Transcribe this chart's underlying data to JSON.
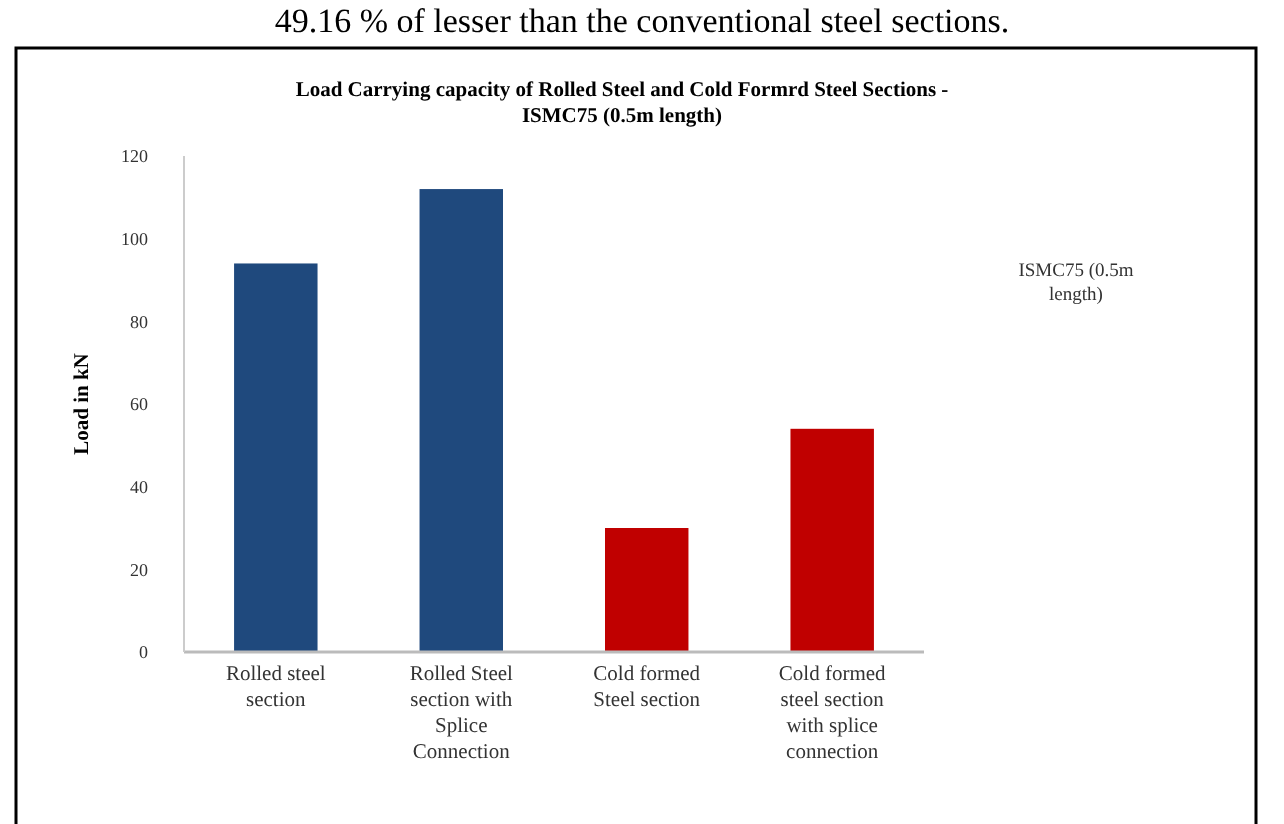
{
  "chart_data": {
    "type": "bar",
    "title": "Load Carrying capacity of Rolled Steel and Cold Formrd Steel Sections - ISMC75 (0.5m length)",
    "ylabel": "Load in kN",
    "annotations": [
      "49.16 % of lesser than the conventional steel sections.",
      "ISMC75 (0.5m length)"
    ],
    "categories": [
      "Rolled steel section",
      "Rolled Steel section with Splice Connection",
      "Cold formed Steel section",
      "Cold formed steel section with splice connection"
    ],
    "values": [
      94,
      112,
      30,
      54
    ],
    "colors": [
      "#1f497d",
      "#1f497d",
      "#c00000",
      "#c00000"
    ],
    "ylim": [
      0,
      120
    ],
    "yticks": [
      0,
      20,
      40,
      60,
      80,
      100,
      120
    ],
    "grid": false
  }
}
